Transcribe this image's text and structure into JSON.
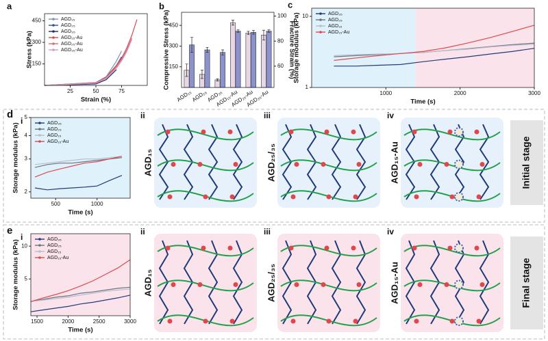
{
  "chart_data": [
    {
      "type": "line",
      "panel": "a",
      "xlabel": "Strain (%)",
      "ylabel": "Stress (kPa)",
      "x": [
        0,
        50,
        60,
        70,
        75,
        80,
        85,
        90
      ],
      "xlim": [
        0,
        100
      ],
      "xticks": [
        25,
        50,
        75
      ],
      "ylim": [
        0,
        500
      ],
      "yticks": [
        150,
        300,
        450
      ],
      "legend": "upper left",
      "series": [
        {
          "name": "AGD₁₅",
          "color": "#7f8fb8",
          "values": [
            0,
            20,
            60,
            170,
            240,
            null,
            null,
            null
          ]
        },
        {
          "name": "AGD₂₅",
          "color": "#3a4e8c",
          "values": [
            0,
            15,
            50,
            140,
            200,
            null,
            null,
            null
          ]
        },
        {
          "name": "AGD₃₅",
          "color": "#1f2f66",
          "values": [
            0,
            10,
            40,
            110,
            null,
            null,
            null,
            null
          ]
        },
        {
          "name": "AGD₁₅-Au",
          "color": "#e0474c",
          "values": [
            0,
            20,
            60,
            140,
            190,
            260,
            350,
            460
          ]
        },
        {
          "name": "AGD₂₅-Au",
          "color": "#c9707a",
          "values": [
            0,
            18,
            55,
            130,
            180,
            245,
            330,
            null
          ]
        },
        {
          "name": "AGD₃₅-Au",
          "color": "#c9a0c8",
          "values": [
            0,
            15,
            50,
            120,
            170,
            235,
            320,
            null
          ]
        }
      ]
    },
    {
      "type": "bar",
      "panel": "b",
      "ylabel": "Compressive Stress (kPa)",
      "y2label": "Fracture Strain (%)",
      "categories": [
        "AGD₁₅",
        "AGD₂₅",
        "AGD₃₅",
        "AGD₁₅-Au",
        "AGD₂₅-Au",
        "AGD₃₅-Au"
      ],
      "ylim": [
        0,
        545
      ],
      "yticks": [
        150,
        300,
        450
      ],
      "y2lim": [
        43,
        103
      ],
      "y2ticks": [
        60,
        80,
        100
      ],
      "series": [
        {
          "color": "#e6d6e6",
          "values": [
            125,
            95,
            55,
            470,
            395,
            380
          ],
          "errors": [
            45,
            30,
            8,
            18,
            12,
            35
          ]
        },
        {
          "color": "#8c93cc",
          "axis": "y2",
          "values": [
            77,
            73,
            71,
            88,
            87,
            88
          ],
          "errors": [
            6,
            2,
            2,
            1,
            1.5,
            1
          ]
        }
      ]
    },
    {
      "type": "line",
      "panel": "c",
      "xlabel": "Time (s)",
      "ylabel": "Storage modulus (kPa)",
      "log_y": true,
      "x": [
        300,
        600,
        900,
        1200,
        1500,
        1800,
        2100,
        2400,
        2700,
        3000
      ],
      "xlim": [
        0,
        3000
      ],
      "xticks": [
        1000,
        2000,
        3000
      ],
      "ylim": [
        1,
        13
      ],
      "yticks": [
        1,
        10
      ],
      "legend": "upper left",
      "shaded_regions": [
        {
          "xlim": [
            0,
            1400
          ],
          "color": "#dff2fb"
        },
        {
          "xlim": [
            1400,
            3000
          ],
          "color": "#fae3ea"
        }
      ],
      "series": [
        {
          "name": "AGD₃₅",
          "color": "#1f3a7a",
          "values": [
            2.0,
            2.0,
            2.05,
            2.1,
            2.3,
            2.5,
            2.7,
            2.95,
            3.2,
            3.55
          ]
        },
        {
          "name": "AGD₂₅",
          "color": "#6b7280",
          "values": [
            2.7,
            2.8,
            2.9,
            3.0,
            3.1,
            3.3,
            3.5,
            3.75,
            4.0,
            4.2
          ]
        },
        {
          "name": "AGD₁₅",
          "color": "#b6bdd0",
          "values": [
            2.8,
            2.9,
            2.95,
            3.0,
            3.1,
            3.3,
            3.45,
            3.7,
            3.9,
            4.05
          ]
        },
        {
          "name": "AGD₁₅-Au",
          "color": "#e0474c",
          "values": [
            2.4,
            2.6,
            2.8,
            3.0,
            3.2,
            3.6,
            4.2,
            5.0,
            6.1,
            7.5
          ]
        }
      ]
    },
    {
      "type": "line",
      "panel": "i",
      "xlabel": "Time (s)",
      "ylabel": "Storage modulus (kPa)",
      "log_y": true,
      "x": [
        250,
        400,
        550,
        700,
        850,
        1000,
        1150,
        1300
      ],
      "xlim": [
        200,
        1400
      ],
      "xticks": [
        500,
        1000
      ],
      "ylim": [
        1.85,
        5
      ],
      "yticks": [
        2,
        3,
        4,
        5
      ],
      "legend": "upper left",
      "background": "#dff2fb",
      "series": [
        {
          "name": "AGD₃₅",
          "color": "#1f3a7a",
          "values": [
            2.1,
            2.05,
            2.08,
            2.1,
            2.12,
            2.15,
            2.3,
            2.45
          ]
        },
        {
          "name": "AGD₂₅",
          "color": "#6b7280",
          "values": [
            2.7,
            2.8,
            2.85,
            2.85,
            2.9,
            2.95,
            3.0,
            3.05
          ]
        },
        {
          "name": "AGD₁₅",
          "color": "#b6bdd0",
          "values": [
            2.8,
            2.85,
            2.9,
            2.95,
            3.0,
            3.0,
            3.05,
            3.1
          ]
        },
        {
          "name": "AGD₁₅-Au",
          "color": "#e0474c",
          "values": [
            2.4,
            2.55,
            2.65,
            2.75,
            2.85,
            2.9,
            3.0,
            3.1
          ]
        }
      ]
    },
    {
      "type": "line",
      "panel": "i",
      "xlabel": "Time (s)",
      "ylabel": "Storage modulus (kPa)",
      "log_y": true,
      "x": [
        1400,
        1600,
        1800,
        2000,
        2200,
        2400,
        2600,
        2800,
        3000
      ],
      "xlim": [
        1400,
        3000
      ],
      "xticks": [
        1500,
        2000,
        2500,
        3000
      ],
      "ylim": [
        2.3,
        13
      ],
      "yticks": [
        5,
        10
      ],
      "legend": "upper left",
      "background": "#fae3ea",
      "series": [
        {
          "name": "AGD₃₅",
          "color": "#1f3a7a",
          "values": [
            2.5,
            2.6,
            2.7,
            2.8,
            2.95,
            3.05,
            3.2,
            3.35,
            3.55
          ]
        },
        {
          "name": "AGD₂₅",
          "color": "#6b7280",
          "values": [
            3.1,
            3.25,
            3.4,
            3.5,
            3.7,
            3.8,
            3.95,
            4.1,
            4.2
          ]
        },
        {
          "name": "AGD₁₅",
          "color": "#b6bdd0",
          "values": [
            3.1,
            3.2,
            3.3,
            3.4,
            3.55,
            3.7,
            3.85,
            3.95,
            4.05
          ]
        },
        {
          "name": "AGD₁₅-Au",
          "color": "#e0474c",
          "values": [
            3.1,
            3.35,
            3.6,
            3.9,
            4.3,
            4.8,
            5.5,
            6.3,
            7.5
          ]
        }
      ]
    }
  ],
  "rows": [
    {
      "letter": "d",
      "stage": "Initial stage",
      "background": "#e6f1fb",
      "panels": [
        {
          "numeral": "ii",
          "label": "AGD₁₅"
        },
        {
          "numeral": "iii",
          "label": "AGD₂₅/₃₅"
        },
        {
          "numeral": "iv",
          "label": "AGD₁₅-Au"
        }
      ]
    },
    {
      "letter": "e",
      "stage": "Final stage",
      "background": "#fae3ea",
      "panels": [
        {
          "numeral": "ii",
          "label": "AGD₁₅"
        },
        {
          "numeral": "iii",
          "label": "AGD₂₅/₃₅"
        },
        {
          "numeral": "iv",
          "label": "AGD₁₅-Au"
        }
      ]
    }
  ]
}
